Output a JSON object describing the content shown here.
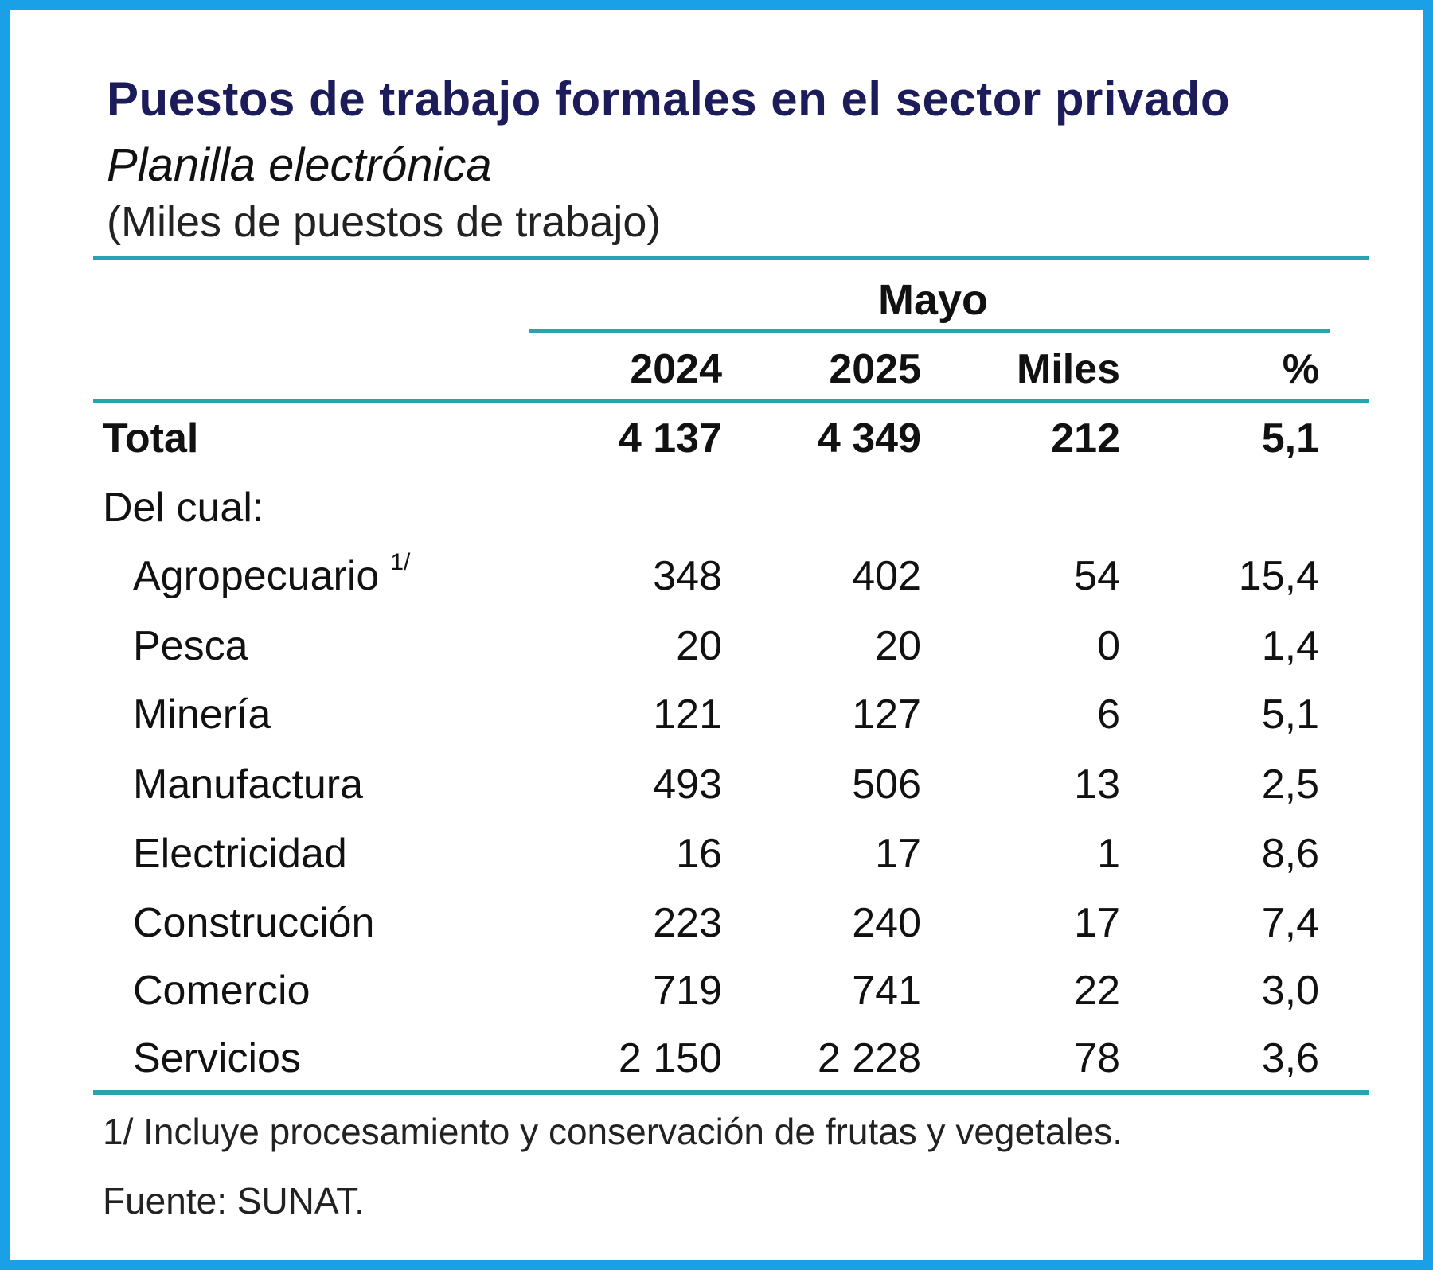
{
  "header": {
    "title": "Puestos de trabajo formales en el sector privado",
    "subtitle": "Planilla electrónica",
    "units": "(Miles de puestos de trabajo)"
  },
  "table": {
    "group_header": "Mayo",
    "columns": [
      "2024",
      "2025",
      "Miles",
      "%"
    ],
    "total": {
      "label": "Total",
      "values": [
        "4 137",
        "4 349",
        "212",
        "5,1"
      ]
    },
    "subheader": "Del cual:",
    "rows": [
      {
        "label": "Agropecuario",
        "note": "1/",
        "values": [
          "348",
          "402",
          "54",
          "15,4"
        ]
      },
      {
        "label": "Pesca",
        "values": [
          "20",
          "20",
          "0",
          "1,4"
        ]
      },
      {
        "label": "Minería",
        "values": [
          "121",
          "127",
          "6",
          "5,1"
        ]
      },
      {
        "label": "Manufactura",
        "values": [
          "493",
          "506",
          "13",
          "2,5"
        ]
      },
      {
        "label": "Electricidad",
        "values": [
          "16",
          "17",
          "1",
          "8,6"
        ]
      },
      {
        "label": "Construcción",
        "values": [
          "223",
          "240",
          "17",
          "7,4"
        ]
      },
      {
        "label": "Comercio",
        "values": [
          "719",
          "741",
          "22",
          "3,0"
        ]
      },
      {
        "label": "Servicios",
        "values": [
          "2 150",
          "2 228",
          "78",
          "3,6"
        ]
      }
    ]
  },
  "footnotes": {
    "note1": "1/ Incluye procesamiento y conservación de frutas y vegetales.",
    "source": "Fuente: SUNAT."
  },
  "colors": {
    "frame": "#1aa0e6",
    "rules": "#2aa3b0",
    "title": "#1c1c5a"
  }
}
